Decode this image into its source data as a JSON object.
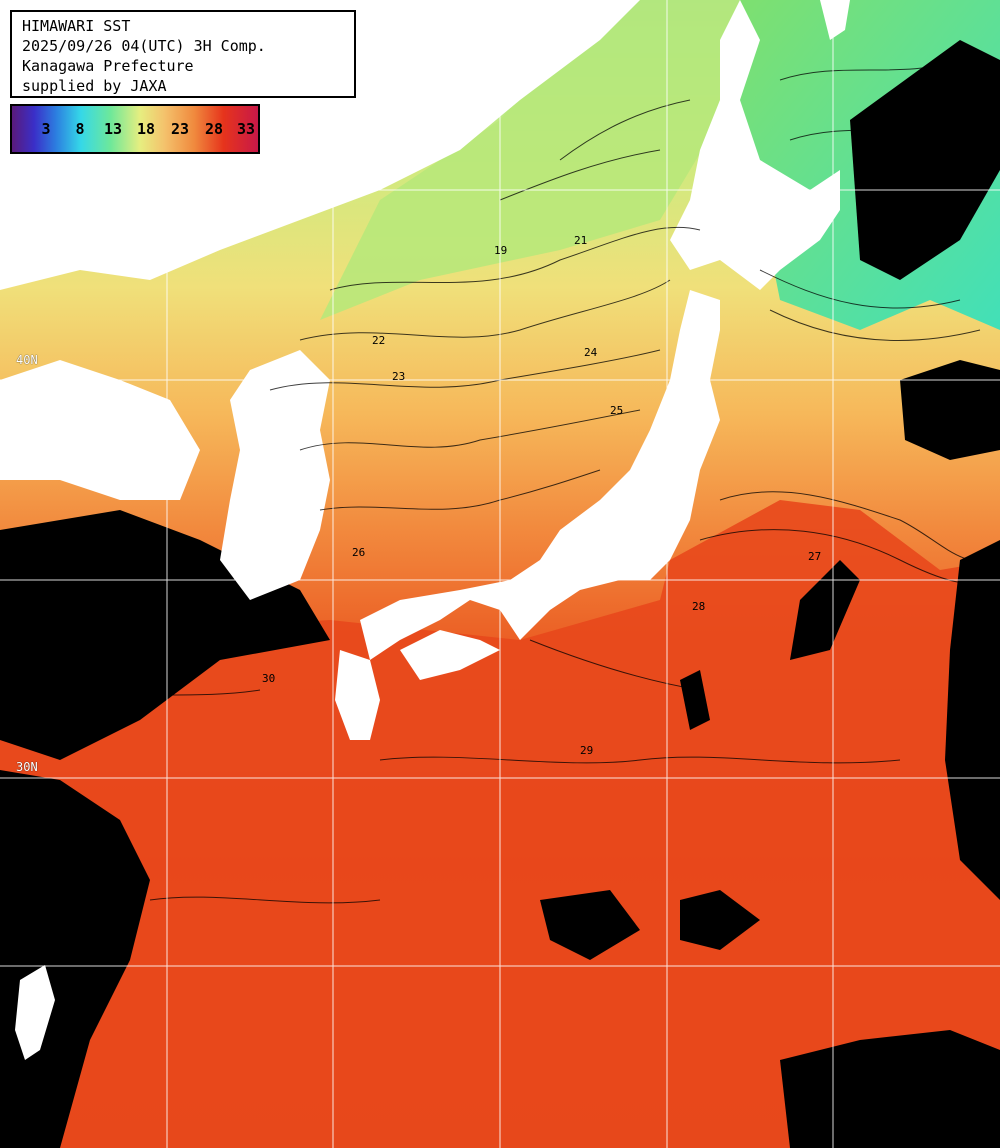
{
  "header": {
    "line1": "HIMAWARI SST",
    "line2": "2025/09/26 04(UTC) 3H Comp.",
    "line3": "Kanagawa Prefecture",
    "line4": "supplied by JAXA"
  },
  "legend": {
    "labels": [
      "3",
      "8",
      "13",
      "18",
      "23",
      "28",
      "33"
    ]
  },
  "grid_labels": {
    "lat_40": "40N",
    "lat_30": "30N"
  },
  "contour_labels": [
    "19",
    "21",
    "22",
    "23",
    "24",
    "25",
    "26",
    "27",
    "28",
    "29",
    "30"
  ],
  "colors": {
    "land": "#ffffff",
    "cloud": "#000000",
    "sea_warm": "#e8461a",
    "sea_mid": "#f5a04a",
    "sea_cool": "#d8ee7a",
    "sea_cold": "#4ee8b0",
    "grid": "#ffffff"
  }
}
